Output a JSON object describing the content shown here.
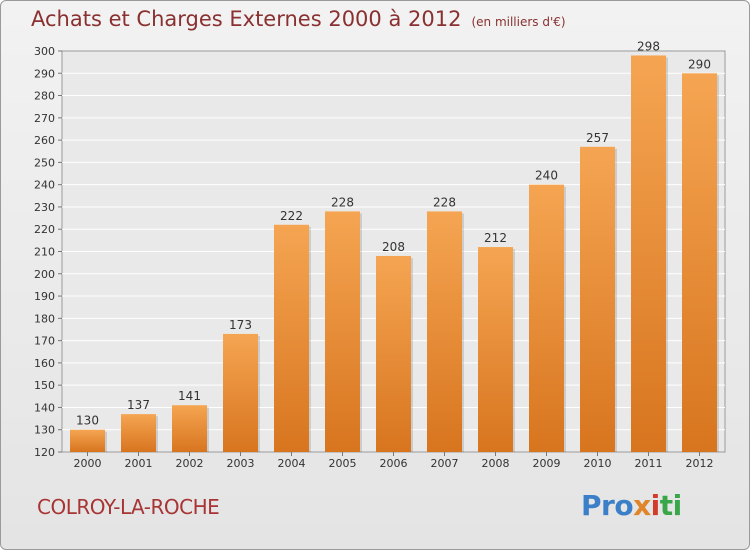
{
  "header": {
    "title": "Achats et Charges Externes 2000 à 2012",
    "unit": "(en milliers d'€)"
  },
  "footer": {
    "town": "COLROY-LA-ROCHE",
    "logo": [
      "Pro",
      "x",
      "i",
      "ti"
    ]
  },
  "colors": {
    "bar_light": "#f5a552",
    "bar_dark": "#d8751f",
    "title": "#8a3030",
    "town": "#a83434"
  },
  "chart_data": {
    "type": "bar",
    "title": "Achats et Charges Externes 2000 à 2012",
    "subtitle": "(en milliers d'€)",
    "categories": [
      "2000",
      "2001",
      "2002",
      "2003",
      "2004",
      "2005",
      "2006",
      "2007",
      "2008",
      "2009",
      "2010",
      "2011",
      "2012"
    ],
    "values": [
      130,
      137,
      141,
      173,
      222,
      228,
      208,
      228,
      212,
      240,
      257,
      298,
      290
    ],
    "ylim": [
      120,
      300
    ],
    "yticks": [
      120,
      130,
      140,
      150,
      160,
      170,
      180,
      190,
      200,
      210,
      220,
      230,
      240,
      250,
      260,
      270,
      280,
      290,
      300
    ],
    "grid": true,
    "legend": "none"
  }
}
